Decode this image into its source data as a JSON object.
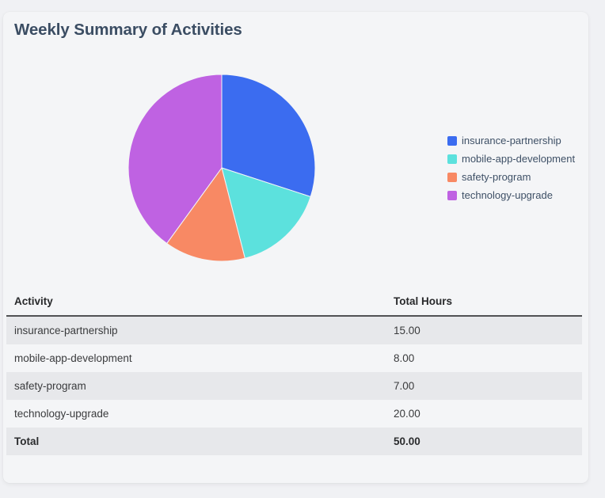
{
  "card": {
    "title": "Weekly Summary of Activities"
  },
  "chart_data": {
    "type": "pie",
    "title": "",
    "labels": [
      "insurance-partnership",
      "mobile-app-development",
      "safety-program",
      "technology-upgrade"
    ],
    "values": [
      15,
      8,
      7,
      20
    ],
    "total": 50,
    "colors": [
      "#3b6cf0",
      "#5ce1dd",
      "#f88964",
      "#bf62e2"
    ],
    "start_angle_deg": -90,
    "direction": "clockwise",
    "legend_position": "right"
  },
  "table": {
    "columns": [
      "Activity",
      "Total Hours"
    ],
    "rows": [
      [
        "insurance-partnership",
        "15.00"
      ],
      [
        "mobile-app-development",
        "8.00"
      ],
      [
        "safety-program",
        "7.00"
      ],
      [
        "technology-upgrade",
        "20.00"
      ]
    ],
    "total_row": [
      "Total",
      "50.00"
    ]
  },
  "colors": {
    "page_bg": "#f0f1f4",
    "card_bg": "#f4f5f7",
    "title_text": "#3b4d63",
    "legend_text": "#3e5066",
    "table_header_text": "#28292b",
    "table_row_text": "#3a3b3d",
    "table_stripe_bg": "#e7e8eb",
    "header_rule": "#515254"
  }
}
